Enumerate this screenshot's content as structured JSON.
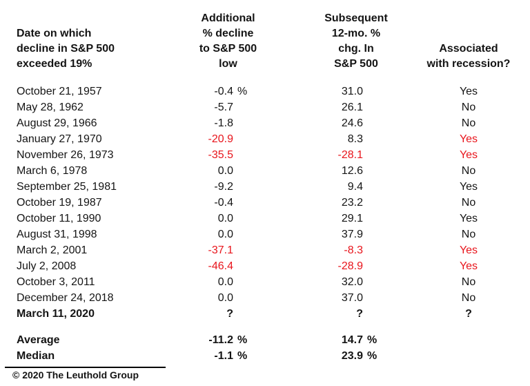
{
  "colors": {
    "red": "#e8141b",
    "text": "#141414",
    "rule": "#000000",
    "background": "#ffffff"
  },
  "header": {
    "col1": {
      "lines": [
        "Date on which",
        "decline in S&P 500",
        "exceeded 19%"
      ]
    },
    "col2": {
      "lines": [
        "Additional",
        "% decline",
        "to S&P 500",
        "low"
      ]
    },
    "col3": {
      "lines": [
        "Subsequent",
        "12-mo. %",
        "chg. In",
        "S&P 500"
      ]
    },
    "col4": {
      "lines": [
        "Associated",
        "with recession?"
      ]
    }
  },
  "rows": [
    {
      "date": "October 21, 1957",
      "decline": "-0.4",
      "decline_suffix": "%",
      "chg": "31.0",
      "chg_suffix": "",
      "recession": "Yes"
    },
    {
      "date": "May 28, 1962",
      "decline": "-5.7",
      "decline_suffix": "",
      "chg": "26.1",
      "chg_suffix": "",
      "recession": "No"
    },
    {
      "date": "August 29, 1966",
      "decline": "-1.8",
      "decline_suffix": "",
      "chg": "24.6",
      "chg_suffix": "",
      "recession": "No"
    },
    {
      "date": "January 27, 1970",
      "decline": "-20.9",
      "decline_color": "red",
      "decline_suffix": "",
      "chg": "8.3",
      "chg_suffix": "",
      "recession": "Yes",
      "recession_color": "red"
    },
    {
      "date": "November 26, 1973",
      "decline": "-35.5",
      "decline_color": "red",
      "decline_suffix": "",
      "chg": "-28.1",
      "chg_color": "red",
      "chg_suffix": "",
      "recession": "Yes",
      "recession_color": "red"
    },
    {
      "date": "March 6, 1978",
      "decline": "0.0",
      "decline_suffix": "",
      "chg": "12.6",
      "chg_suffix": "",
      "recession": "No"
    },
    {
      "date": "September 25, 1981",
      "decline": "-9.2",
      "decline_suffix": "",
      "chg": "9.4",
      "chg_suffix": "",
      "recession": "Yes"
    },
    {
      "date": "October 19, 1987",
      "decline": "-0.4",
      "decline_suffix": "",
      "chg": "23.2",
      "chg_suffix": "",
      "recession": "No"
    },
    {
      "date": "October 11, 1990",
      "decline": "0.0",
      "decline_suffix": "",
      "chg": "29.1",
      "chg_suffix": "",
      "recession": "Yes"
    },
    {
      "date": "August 31, 1998",
      "decline": "0.0",
      "decline_suffix": "",
      "chg": "37.9",
      "chg_suffix": "",
      "recession": "No"
    },
    {
      "date": "March 2, 2001",
      "decline": "-37.1",
      "decline_color": "red",
      "decline_suffix": "",
      "chg": "-8.3",
      "chg_color": "red",
      "chg_suffix": "",
      "recession": "Yes",
      "recession_color": "red"
    },
    {
      "date": "July 2, 2008",
      "decline": "-46.4",
      "decline_color": "red",
      "decline_suffix": "",
      "chg": "-28.9",
      "chg_color": "red",
      "chg_suffix": "",
      "recession": "Yes",
      "recession_color": "red"
    },
    {
      "date": "October 3, 2011",
      "decline": "0.0",
      "decline_suffix": "",
      "chg": "32.0",
      "chg_suffix": "",
      "recession": "No"
    },
    {
      "date": "December 24, 2018",
      "decline": "0.0",
      "decline_suffix": "",
      "chg": "37.0",
      "chg_suffix": "",
      "recession": "No"
    },
    {
      "date": "March 11, 2020",
      "bold": true,
      "decline": "?",
      "decline_suffix": "",
      "chg": "?",
      "chg_suffix": "",
      "recession": "?"
    }
  ],
  "summary": [
    {
      "label": "Average",
      "decline": "-11.2",
      "decline_suffix": "%",
      "chg": "14.7",
      "chg_suffix": "%"
    },
    {
      "label": "Median",
      "decline": "-1.1",
      "decline_suffix": "%",
      "chg": "23.9",
      "chg_suffix": "%"
    }
  ],
  "footer": {
    "copyright": "© 2020 The Leuthold Group"
  },
  "chart_data": {
    "type": "table",
    "columns": [
      "Date on which decline in S&P 500 exceeded 19%",
      "Additional % decline to S&P 500 low",
      "Subsequent 12-mo. % chg. In S&P 500",
      "Associated with recession?"
    ],
    "rows": [
      [
        "October 21, 1957",
        -0.4,
        31.0,
        "Yes"
      ],
      [
        "May 28, 1962",
        -5.7,
        26.1,
        "No"
      ],
      [
        "August 29, 1966",
        -1.8,
        24.6,
        "No"
      ],
      [
        "January 27, 1970",
        -20.9,
        8.3,
        "Yes"
      ],
      [
        "November 26, 1973",
        -35.5,
        -28.1,
        "Yes"
      ],
      [
        "March 6, 1978",
        0.0,
        12.6,
        "No"
      ],
      [
        "September 25, 1981",
        -9.2,
        9.4,
        "Yes"
      ],
      [
        "October 19, 1987",
        -0.4,
        23.2,
        "No"
      ],
      [
        "October 11, 1990",
        0.0,
        29.1,
        "Yes"
      ],
      [
        "August 31, 1998",
        0.0,
        37.9,
        "No"
      ],
      [
        "March 2, 2001",
        -37.1,
        -8.3,
        "Yes"
      ],
      [
        "July 2, 2008",
        -46.4,
        -28.9,
        "Yes"
      ],
      [
        "October 3, 2011",
        0.0,
        32.0,
        "No"
      ],
      [
        "December 24, 2018",
        0.0,
        37.0,
        "No"
      ],
      [
        "March 11, 2020",
        "?",
        "?",
        "?"
      ]
    ],
    "summary_rows": [
      [
        "Average",
        -11.2,
        14.7
      ],
      [
        "Median",
        -1.1,
        23.9
      ]
    ],
    "red_highlighted_rows": [
      "January 27, 1970",
      "November 26, 1973",
      "March 2, 2001",
      "July 2, 2008"
    ],
    "source": "© 2020 The Leuthold Group"
  }
}
